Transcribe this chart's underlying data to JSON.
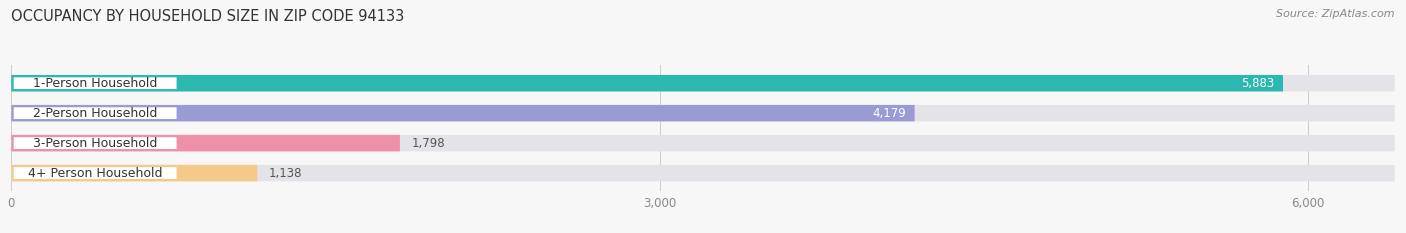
{
  "title": "OCCUPANCY BY HOUSEHOLD SIZE IN ZIP CODE 94133",
  "source": "Source: ZipAtlas.com",
  "categories": [
    "1-Person Household",
    "2-Person Household",
    "3-Person Household",
    "4+ Person Household"
  ],
  "values": [
    5883,
    4179,
    1798,
    1138
  ],
  "bar_colors": [
    "#2ab8b0",
    "#9b9bd4",
    "#f090a8",
    "#f5c98a"
  ],
  "label_border_colors": [
    "#2ab8b0",
    "#9b9bd4",
    "#f090a8",
    "#f5c98a"
  ],
  "value_label_inside": [
    true,
    true,
    false,
    false
  ],
  "xlim": [
    0,
    6400
  ],
  "xticks": [
    0,
    3000,
    6000
  ],
  "background_color": "#f7f7f7",
  "bar_background_color": "#e4e4e8",
  "title_fontsize": 10.5,
  "source_fontsize": 8,
  "label_fontsize": 9,
  "value_fontsize": 8.5,
  "bar_height": 0.55,
  "bar_gap": 1.0
}
